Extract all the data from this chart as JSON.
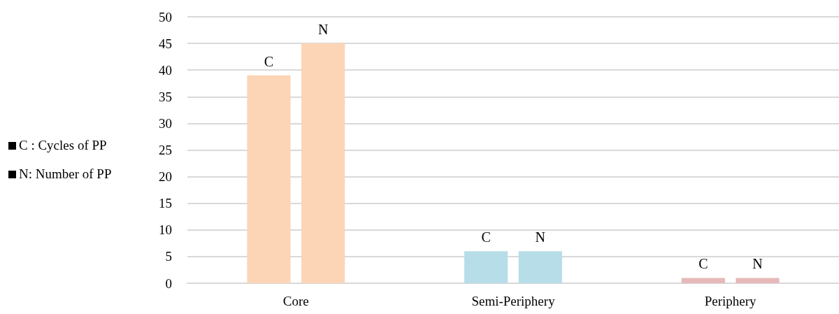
{
  "chart_data": {
    "type": "bar",
    "categories": [
      "Core",
      "Semi-Periphery",
      "Periphery"
    ],
    "series": [
      {
        "colors": [
          "#fbd5b5",
          "#b7dde8",
          "#e6b9b8"
        ],
        "values": [
          39,
          6,
          1
        ],
        "value_labels": [
          "C",
          "C",
          "C"
        ]
      },
      {
        "colors": [
          "#fbd5b5",
          "#b7dde8",
          "#e6b9b8"
        ],
        "values": [
          45,
          6,
          1
        ],
        "value_labels": [
          "N",
          "N",
          "N"
        ]
      }
    ],
    "annotations": [
      "C : Cycles of PP",
      "N: Number of PP"
    ],
    "ylim": [
      0,
      50
    ],
    "yticks": [
      0,
      5,
      10,
      15,
      20,
      25,
      30,
      35,
      40,
      45,
      50
    ],
    "grid": "y"
  }
}
